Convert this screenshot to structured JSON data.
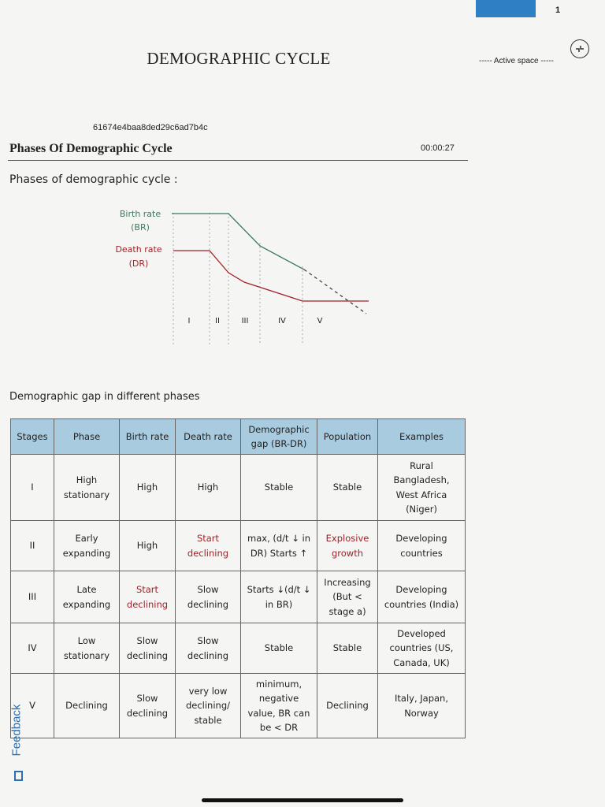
{
  "page_number": "1",
  "document": {
    "title": "DEMOGRAPHIC CYCLE",
    "active_space_label": "----- Active space -----",
    "hash_id": "61674e4baa8ded29c6ad7b4c",
    "section_title": "Phases Of Demographic Cycle",
    "timer": "00:00:27"
  },
  "notes": {
    "phases_heading": "Phases of demographic cycle :",
    "gap_heading": "Demographic gap in different phases"
  },
  "diagram": {
    "birth_rate_label": [
      "Birth rate",
      "(BR)"
    ],
    "death_rate_label": [
      "Death rate",
      "(DR)"
    ],
    "phase_labels": [
      "I",
      "II",
      "III",
      "IV",
      "V"
    ],
    "colors": {
      "birth": "#3a7a5a",
      "death": "#a0222a"
    }
  },
  "table": {
    "headers": [
      "Stages",
      "Phase",
      "Birth rate",
      "Death rate",
      "Demographic gap (BR-DR)",
      "Population",
      "Examples"
    ],
    "rows": [
      [
        "I",
        "High stationary",
        "High",
        "High",
        "Stable",
        "Stable",
        "Rural Bangladesh, West Africa (Niger)"
      ],
      [
        "II",
        "Early expanding",
        "High",
        "Start declining",
        "max, (d/t ↓ in DR) Starts ↑",
        "Explosive growth",
        "Developing countries"
      ],
      [
        "III",
        "Late expanding",
        "Start declining",
        "Slow declining",
        "Starts ↓(d/t ↓ in BR)",
        "Increasing (But < stage a)",
        "Developing countries (India)"
      ],
      [
        "IV",
        "Low stationary",
        "Slow declining",
        "Slow declining",
        "Stable",
        "Stable",
        "Developed countries (US, Canada, UK)"
      ],
      [
        "V",
        "Declining",
        "Slow declining",
        "very low declining/ stable",
        "minimum, negative value, BR can be < DR",
        "Declining",
        "Italy, Japan, Norway"
      ]
    ]
  },
  "feedback_label": "Feedback"
}
